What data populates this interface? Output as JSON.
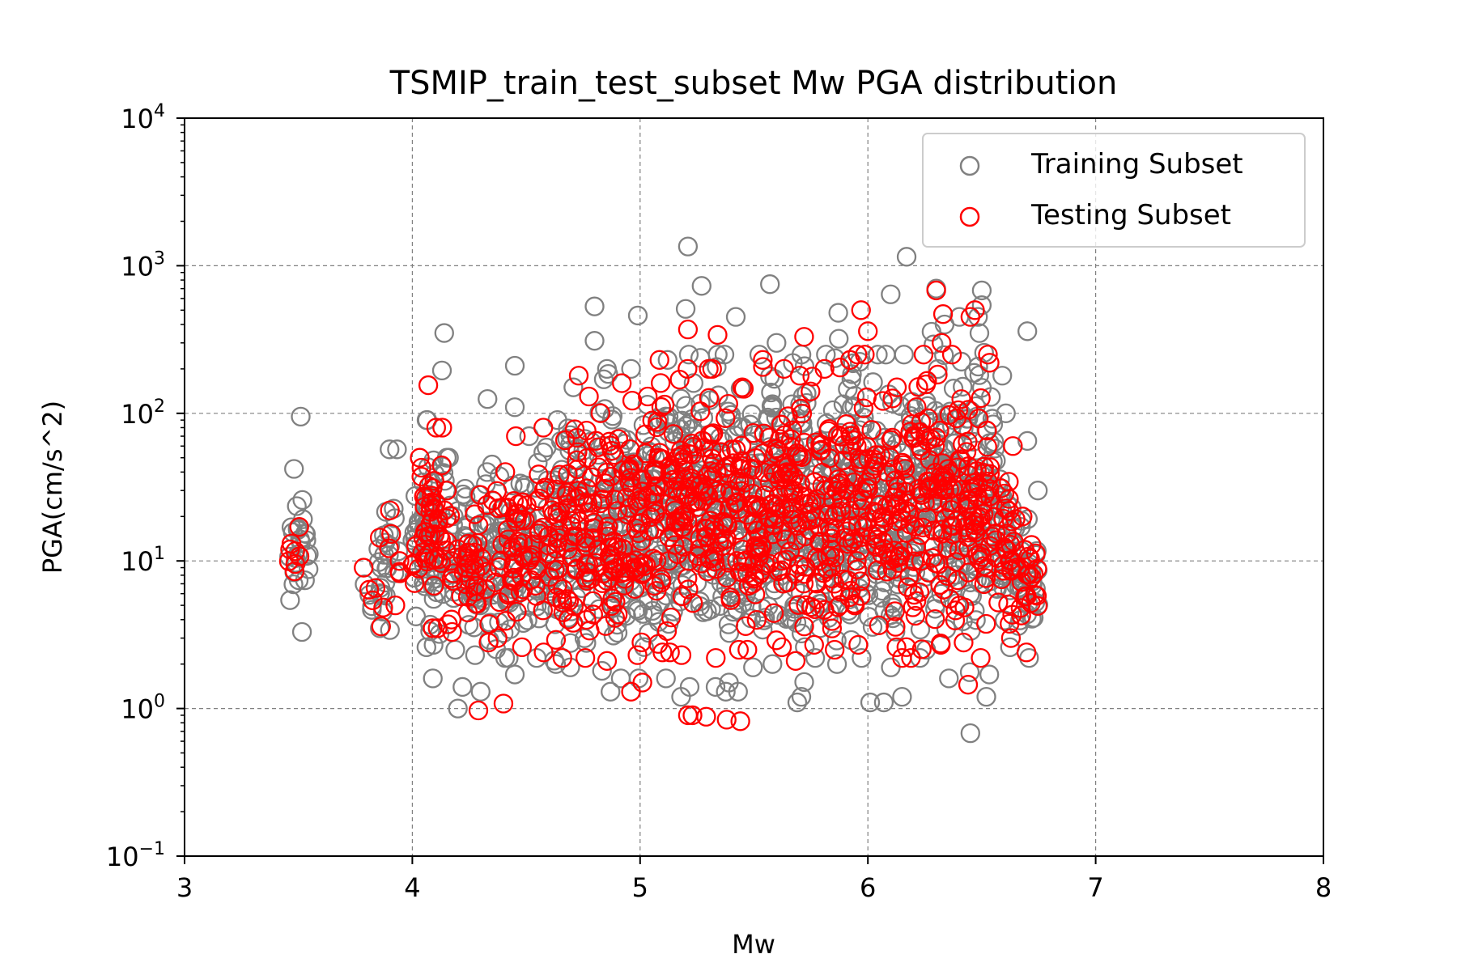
{
  "chart_data": {
    "type": "scatter",
    "title": "TSMIP_train_test_subset Mw PGA distribution",
    "xlabel": "Mw",
    "ylabel": "PGA(cm/s^2)",
    "xlim": [
      3,
      8
    ],
    "ylim": [
      0.1,
      10000
    ],
    "yscale": "log",
    "grid": true,
    "legend_position": "top-right",
    "x_ticks": [
      "3",
      "4",
      "5",
      "6",
      "7",
      "8"
    ],
    "y_ticks": [
      {
        "base": "10",
        "exp": "−1"
      },
      {
        "base": "10",
        "exp": "0"
      },
      {
        "base": "10",
        "exp": "1"
      },
      {
        "base": "10",
        "exp": "2"
      },
      {
        "base": "10",
        "exp": "3"
      },
      {
        "base": "10",
        "exp": "4"
      }
    ],
    "series": [
      {
        "name": "Training Subset",
        "color": "#808080",
        "bands": [
          {
            "x": 3.5,
            "low": 3.3,
            "high": 42,
            "n": 26
          },
          {
            "x": 3.84,
            "low": 3.5,
            "high": 11,
            "n": 14
          },
          {
            "x": 3.9,
            "low": 3.4,
            "high": 57,
            "n": 16
          },
          {
            "x": 4.05,
            "low": 2.7,
            "high": 48,
            "n": 34
          },
          {
            "x": 4.1,
            "low": 2.6,
            "high": 90,
            "n": 40
          },
          {
            "x": 4.2,
            "low": 2.5,
            "high": 50,
            "n": 36
          },
          {
            "x": 4.3,
            "low": 2.3,
            "high": 40,
            "n": 40
          },
          {
            "x": 4.4,
            "low": 2.2,
            "high": 45,
            "n": 40
          },
          {
            "x": 4.5,
            "low": 2.2,
            "high": 70,
            "n": 42
          },
          {
            "x": 4.6,
            "low": 2.0,
            "high": 90,
            "n": 44
          },
          {
            "x": 4.7,
            "low": 1.9,
            "high": 150,
            "n": 46
          },
          {
            "x": 4.8,
            "low": 1.8,
            "high": 170,
            "n": 50
          },
          {
            "x": 4.9,
            "low": 1.6,
            "high": 200,
            "n": 54
          },
          {
            "x": 5.0,
            "low": 1.6,
            "high": 200,
            "n": 54
          },
          {
            "x": 5.1,
            "low": 1.6,
            "high": 230,
            "n": 56
          },
          {
            "x": 5.2,
            "low": 1.4,
            "high": 250,
            "n": 60
          },
          {
            "x": 5.3,
            "low": 1.4,
            "high": 250,
            "n": 60
          },
          {
            "x": 5.4,
            "low": 1.3,
            "high": 250,
            "n": 58
          },
          {
            "x": 5.5,
            "low": 1.9,
            "high": 250,
            "n": 56
          },
          {
            "x": 5.6,
            "low": 2.0,
            "high": 300,
            "n": 58
          },
          {
            "x": 5.7,
            "low": 1.2,
            "high": 250,
            "n": 56
          },
          {
            "x": 5.8,
            "low": 2.2,
            "high": 250,
            "n": 56
          },
          {
            "x": 5.9,
            "low": 2.0,
            "high": 320,
            "n": 56
          },
          {
            "x": 6.0,
            "low": 2.2,
            "high": 250,
            "n": 54
          },
          {
            "x": 6.1,
            "low": 1.9,
            "high": 250,
            "n": 52
          },
          {
            "x": 6.2,
            "low": 2.2,
            "high": 250,
            "n": 52
          },
          {
            "x": 6.3,
            "low": 2.5,
            "high": 400,
            "n": 58
          },
          {
            "x": 6.4,
            "low": 1.6,
            "high": 450,
            "n": 58
          },
          {
            "x": 6.5,
            "low": 1.7,
            "high": 450,
            "n": 58
          },
          {
            "x": 6.6,
            "low": 2.6,
            "high": 100,
            "n": 44
          },
          {
            "x": 6.7,
            "low": 2.2,
            "high": 30,
            "n": 34
          }
        ],
        "outliers": [
          {
            "x": 3.51,
            "y": 95
          },
          {
            "x": 3.9,
            "y": 57
          },
          {
            "x": 4.14,
            "y": 350
          },
          {
            "x": 4.13,
            "y": 195
          },
          {
            "x": 4.09,
            "y": 1.6
          },
          {
            "x": 4.2,
            "y": 1.0
          },
          {
            "x": 4.22,
            "y": 1.4
          },
          {
            "x": 4.3,
            "y": 1.3
          },
          {
            "x": 4.33,
            "y": 125
          },
          {
            "x": 4.45,
            "y": 210
          },
          {
            "x": 4.45,
            "y": 110
          },
          {
            "x": 4.45,
            "y": 1.7
          },
          {
            "x": 4.8,
            "y": 530
          },
          {
            "x": 4.8,
            "y": 310
          },
          {
            "x": 4.99,
            "y": 460
          },
          {
            "x": 4.87,
            "y": 1.3
          },
          {
            "x": 5.18,
            "y": 1.2
          },
          {
            "x": 5.21,
            "y": 1350
          },
          {
            "x": 5.2,
            "y": 510
          },
          {
            "x": 5.27,
            "y": 730
          },
          {
            "x": 5.42,
            "y": 450
          },
          {
            "x": 5.39,
            "y": 1.5
          },
          {
            "x": 5.43,
            "y": 1.3
          },
          {
            "x": 5.57,
            "y": 750
          },
          {
            "x": 5.69,
            "y": 1.1
          },
          {
            "x": 5.87,
            "y": 480
          },
          {
            "x": 6.01,
            "y": 1.1
          },
          {
            "x": 6.07,
            "y": 1.1
          },
          {
            "x": 6.1,
            "y": 640
          },
          {
            "x": 6.15,
            "y": 1.2
          },
          {
            "x": 6.17,
            "y": 1150
          },
          {
            "x": 6.3,
            "y": 700
          },
          {
            "x": 6.45,
            "y": 0.68
          },
          {
            "x": 6.5,
            "y": 680
          },
          {
            "x": 6.5,
            "y": 540
          },
          {
            "x": 6.52,
            "y": 1.2
          },
          {
            "x": 6.59,
            "y": 180
          },
          {
            "x": 6.7,
            "y": 360
          },
          {
            "x": 6.7,
            "y": 65
          }
        ]
      },
      {
        "name": "Testing Subset",
        "color": "#ff0000",
        "bands": [
          {
            "x": 3.5,
            "low": 8.5,
            "high": 17,
            "n": 8
          },
          {
            "x": 3.83,
            "low": 3.6,
            "high": 9,
            "n": 6
          },
          {
            "x": 3.9,
            "low": 5.0,
            "high": 22,
            "n": 8
          },
          {
            "x": 4.05,
            "low": 3.5,
            "high": 50,
            "n": 22
          },
          {
            "x": 4.1,
            "low": 3.5,
            "high": 80,
            "n": 28
          },
          {
            "x": 4.2,
            "low": 3.3,
            "high": 30,
            "n": 22
          },
          {
            "x": 4.3,
            "low": 2.8,
            "high": 28,
            "n": 24
          },
          {
            "x": 4.4,
            "low": 3.0,
            "high": 40,
            "n": 26
          },
          {
            "x": 4.5,
            "low": 2.6,
            "high": 70,
            "n": 30
          },
          {
            "x": 4.6,
            "low": 2.4,
            "high": 80,
            "n": 32
          },
          {
            "x": 4.7,
            "low": 2.2,
            "high": 180,
            "n": 36
          },
          {
            "x": 4.8,
            "low": 2.2,
            "high": 130,
            "n": 40
          },
          {
            "x": 4.9,
            "low": 2.1,
            "high": 160,
            "n": 44
          },
          {
            "x": 5.0,
            "low": 2.3,
            "high": 130,
            "n": 42
          },
          {
            "x": 5.1,
            "low": 2.4,
            "high": 230,
            "n": 46
          },
          {
            "x": 5.2,
            "low": 2.3,
            "high": 200,
            "n": 46
          },
          {
            "x": 5.3,
            "low": 2.2,
            "high": 200,
            "n": 46
          },
          {
            "x": 5.4,
            "low": 2.5,
            "high": 150,
            "n": 44
          },
          {
            "x": 5.5,
            "low": 2.5,
            "high": 230,
            "n": 46
          },
          {
            "x": 5.6,
            "low": 2.6,
            "high": 200,
            "n": 46
          },
          {
            "x": 5.7,
            "low": 2.1,
            "high": 180,
            "n": 44
          },
          {
            "x": 5.8,
            "low": 2.7,
            "high": 200,
            "n": 46
          },
          {
            "x": 5.9,
            "low": 2.5,
            "high": 230,
            "n": 46
          },
          {
            "x": 6.0,
            "low": 2.7,
            "high": 250,
            "n": 44
          },
          {
            "x": 6.1,
            "low": 2.6,
            "high": 150,
            "n": 42
          },
          {
            "x": 6.2,
            "low": 2.2,
            "high": 250,
            "n": 42
          },
          {
            "x": 6.3,
            "low": 2.7,
            "high": 300,
            "n": 48
          },
          {
            "x": 6.4,
            "low": 2.8,
            "high": 250,
            "n": 46
          },
          {
            "x": 6.5,
            "low": 2.2,
            "high": 250,
            "n": 46
          },
          {
            "x": 6.6,
            "low": 3.0,
            "high": 60,
            "n": 32
          },
          {
            "x": 6.7,
            "low": 2.4,
            "high": 20,
            "n": 24
          }
        ],
        "outliers": [
          {
            "x": 4.07,
            "y": 155
          },
          {
            "x": 4.29,
            "y": 0.97
          },
          {
            "x": 4.4,
            "y": 1.08
          },
          {
            "x": 4.96,
            "y": 1.3
          },
          {
            "x": 5.01,
            "y": 1.5
          },
          {
            "x": 5.21,
            "y": 0.9
          },
          {
            "x": 5.23,
            "y": 0.9
          },
          {
            "x": 5.29,
            "y": 0.88
          },
          {
            "x": 5.38,
            "y": 0.84
          },
          {
            "x": 5.44,
            "y": 0.82
          },
          {
            "x": 5.21,
            "y": 370
          },
          {
            "x": 5.34,
            "y": 340
          },
          {
            "x": 5.72,
            "y": 330
          },
          {
            "x": 5.97,
            "y": 500
          },
          {
            "x": 6.0,
            "y": 360
          },
          {
            "x": 6.3,
            "y": 680
          },
          {
            "x": 6.33,
            "y": 470
          },
          {
            "x": 6.45,
            "y": 450
          },
          {
            "x": 6.47,
            "y": 500
          },
          {
            "x": 6.44,
            "y": 1.45
          },
          {
            "x": 6.15,
            "y": 2.2
          }
        ]
      }
    ]
  }
}
